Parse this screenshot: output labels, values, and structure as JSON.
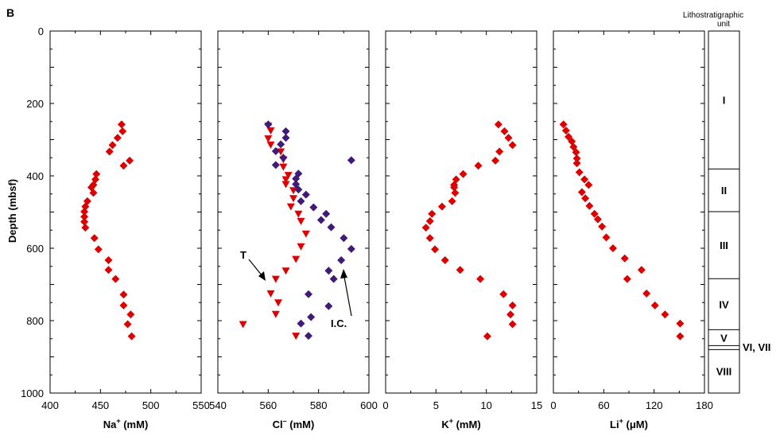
{
  "panel_letter": "B",
  "ylabel": "Depth (mbsf)",
  "lith_title_line1": "Lithostratigraphic",
  "lith_title_line2": "unit",
  "ann_T": "T",
  "ann_IC": "I.C.",
  "colors": {
    "red": "#dd0000",
    "purple": "#3f1a78"
  },
  "chart_data": [
    {
      "type": "scatter",
      "xlabel": "Na⁺ (mM)",
      "ylabel": "Depth (mbsf)",
      "xlim": [
        400,
        550
      ],
      "ylim": [
        0,
        1000
      ],
      "xticks": [
        "400",
        "450",
        "500",
        "550"
      ],
      "yticks": [
        "0",
        "200",
        "400",
        "600",
        "800",
        "1000"
      ],
      "series": [
        {
          "marker": "diamond",
          "color": "#dd0000",
          "points": [
            [
              471,
              258
            ],
            [
              472,
              277
            ],
            [
              467,
              295
            ],
            [
              462,
              315
            ],
            [
              459,
              333
            ],
            [
              479,
              358
            ],
            [
              473,
              372
            ],
            [
              446,
              395
            ],
            [
              445,
              410
            ],
            [
              443,
              425
            ],
            [
              441,
              432
            ],
            [
              443,
              447
            ],
            [
              437,
              470
            ],
            [
              435,
              485
            ],
            [
              434,
              499
            ],
            [
              434,
              513
            ],
            [
              434,
              527
            ],
            [
              435,
              543
            ],
            [
              444,
              572
            ],
            [
              448,
              603
            ],
            [
              458,
              633
            ],
            [
              458,
              660
            ],
            [
              465,
              685
            ],
            [
              473,
              728
            ],
            [
              473,
              758
            ],
            [
              480,
              783
            ],
            [
              477,
              810
            ],
            [
              481,
              843
            ]
          ]
        }
      ]
    },
    {
      "type": "scatter",
      "xlabel": "Cl⁻ (mM)",
      "xlim": [
        540,
        600
      ],
      "ylim": [
        0,
        1000
      ],
      "xticks": [
        "540",
        "560",
        "580",
        "600"
      ],
      "series": [
        {
          "marker": "triangle-down",
          "color": "#dd0000",
          "points": [
            [
              560,
              262
            ],
            [
              561,
              275
            ],
            [
              560,
              297
            ],
            [
              561,
              314
            ],
            [
              565,
              333
            ],
            [
              566,
              355
            ],
            [
              566,
              375
            ],
            [
              568,
              398
            ],
            [
              567,
              410
            ],
            [
              567,
              423
            ],
            [
              570,
              440
            ],
            [
              570,
              462
            ],
            [
              569,
              485
            ],
            [
              572,
              505
            ],
            [
              573,
              525
            ],
            [
              575,
              560
            ],
            [
              573,
              595
            ],
            [
              571,
              630
            ],
            [
              567,
              662
            ],
            [
              563,
              685
            ],
            [
              561,
              725
            ],
            [
              564,
              750
            ],
            [
              563,
              782
            ],
            [
              550,
              810
            ],
            [
              571,
              842
            ]
          ]
        },
        {
          "marker": "diamond",
          "color": "#3f1a78",
          "points": [
            [
              560,
              258
            ],
            [
              567,
              277
            ],
            [
              567,
              295
            ],
            [
              565,
              313
            ],
            [
              563,
              332
            ],
            [
              566,
              350
            ],
            [
              563,
              370
            ],
            [
              572,
              394
            ],
            [
              571,
              408
            ],
            [
              571,
              423
            ],
            [
              572,
              438
            ],
            [
              575,
              452
            ],
            [
              573,
              470
            ],
            [
              578,
              487
            ],
            [
              583,
              505
            ],
            [
              581,
              522
            ],
            [
              585,
              542
            ],
            [
              590,
              572
            ],
            [
              593,
              602
            ],
            [
              589,
              633
            ],
            [
              593,
              357
            ],
            [
              584,
              662
            ],
            [
              586,
              685
            ],
            [
              576,
              727
            ],
            [
              584,
              760
            ],
            [
              577,
              790
            ],
            [
              573,
              808
            ],
            [
              576,
              842
            ]
          ]
        }
      ]
    },
    {
      "type": "scatter",
      "xlabel": "K⁺ (mM)",
      "xlim": [
        0,
        15
      ],
      "ylim": [
        0,
        1000
      ],
      "xticks": [
        "0",
        "5",
        "10",
        "15"
      ],
      "series": [
        {
          "marker": "diamond",
          "color": "#dd0000",
          "points": [
            [
              11.2,
              258
            ],
            [
              11.8,
              277
            ],
            [
              12.2,
              295
            ],
            [
              12.6,
              315
            ],
            [
              11.3,
              333
            ],
            [
              10.9,
              358
            ],
            [
              9.2,
              372
            ],
            [
              7.7,
              395
            ],
            [
              7.0,
              410
            ],
            [
              6.8,
              425
            ],
            [
              6.8,
              432
            ],
            [
              6.9,
              447
            ],
            [
              6.6,
              470
            ],
            [
              5.6,
              485
            ],
            [
              4.6,
              505
            ],
            [
              4.4,
              525
            ],
            [
              4.0,
              543
            ],
            [
              4.4,
              572
            ],
            [
              4.9,
              603
            ],
            [
              5.9,
              633
            ],
            [
              7.4,
              660
            ],
            [
              9.4,
              685
            ],
            [
              11.7,
              727
            ],
            [
              12.6,
              758
            ],
            [
              12.4,
              783
            ],
            [
              12.6,
              810
            ],
            [
              10.1,
              843
            ]
          ]
        }
      ]
    },
    {
      "type": "scatter",
      "xlabel": "Li⁺ (μM)",
      "xlim": [
        0,
        180
      ],
      "ylim": [
        0,
        1000
      ],
      "xticks": [
        "0",
        "60",
        "120",
        "180"
      ],
      "series": [
        {
          "marker": "diamond",
          "color": "#dd0000",
          "points": [
            [
              12,
              258
            ],
            [
              15,
              275
            ],
            [
              18,
              292
            ],
            [
              22,
              305
            ],
            [
              24,
              320
            ],
            [
              27,
              335
            ],
            [
              28,
              352
            ],
            [
              28,
              365
            ],
            [
              31,
              390
            ],
            [
              37,
              410
            ],
            [
              42,
              425
            ],
            [
              34,
              445
            ],
            [
              38,
              462
            ],
            [
              43,
              483
            ],
            [
              49,
              505
            ],
            [
              53,
              520
            ],
            [
              58,
              540
            ],
            [
              63,
              570
            ],
            [
              71,
              600
            ],
            [
              85,
              628
            ],
            [
              105,
              660
            ],
            [
              88,
              685
            ],
            [
              111,
              725
            ],
            [
              121,
              758
            ],
            [
              133,
              783
            ],
            [
              151,
              808
            ],
            [
              151,
              843
            ]
          ]
        }
      ]
    },
    {
      "type": "table",
      "title": "Lithostratigraphic unit",
      "units": [
        {
          "label": "I",
          "top": 0,
          "bottom": 381
        },
        {
          "label": "II",
          "top": 381,
          "bottom": 499
        },
        {
          "label": "III",
          "top": 499,
          "bottom": 684
        },
        {
          "label": "IV",
          "top": 684,
          "bottom": 825
        },
        {
          "label": "V",
          "top": 825,
          "bottom": 869
        },
        {
          "label": "VI, VII",
          "top": 869,
          "bottom": 880
        },
        {
          "label": "VIII",
          "top": 880,
          "bottom": 1000
        }
      ]
    }
  ]
}
